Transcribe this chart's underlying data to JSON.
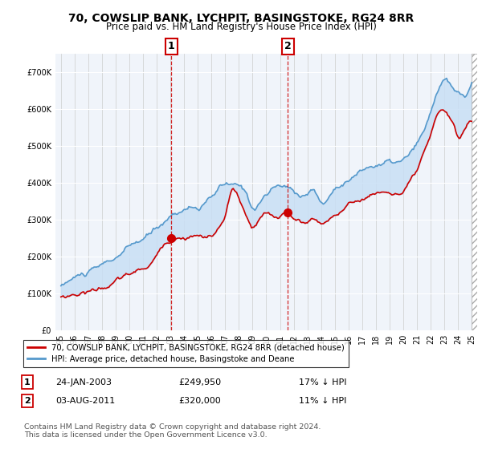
{
  "title": "70, COWSLIP BANK, LYCHPIT, BASINGSTOKE, RG24 8RR",
  "subtitle": "Price paid vs. HM Land Registry's House Price Index (HPI)",
  "ylim": [
    0,
    750000
  ],
  "xlim_start": 1994.6,
  "xlim_end": 2025.4,
  "hpi_color": "#5599cc",
  "price_color": "#cc0000",
  "fill_color": "#c8dff5",
  "bg_color": "#f0f4fa",
  "marker1_year": 2003.07,
  "marker1_price": 249950,
  "marker2_year": 2011.58,
  "marker2_price": 320000,
  "legend_line1": "70, COWSLIP BANK, LYCHPIT, BASINGSTOKE, RG24 8RR (detached house)",
  "legend_line2": "HPI: Average price, detached house, Basingstoke and Deane",
  "annotation1_date": "24-JAN-2003",
  "annotation1_price": "£249,950",
  "annotation1_hpi": "17% ↓ HPI",
  "annotation2_date": "03-AUG-2011",
  "annotation2_price": "£320,000",
  "annotation2_hpi": "11% ↓ HPI",
  "footnote": "Contains HM Land Registry data © Crown copyright and database right 2024.\nThis data is licensed under the Open Government Licence v3.0."
}
